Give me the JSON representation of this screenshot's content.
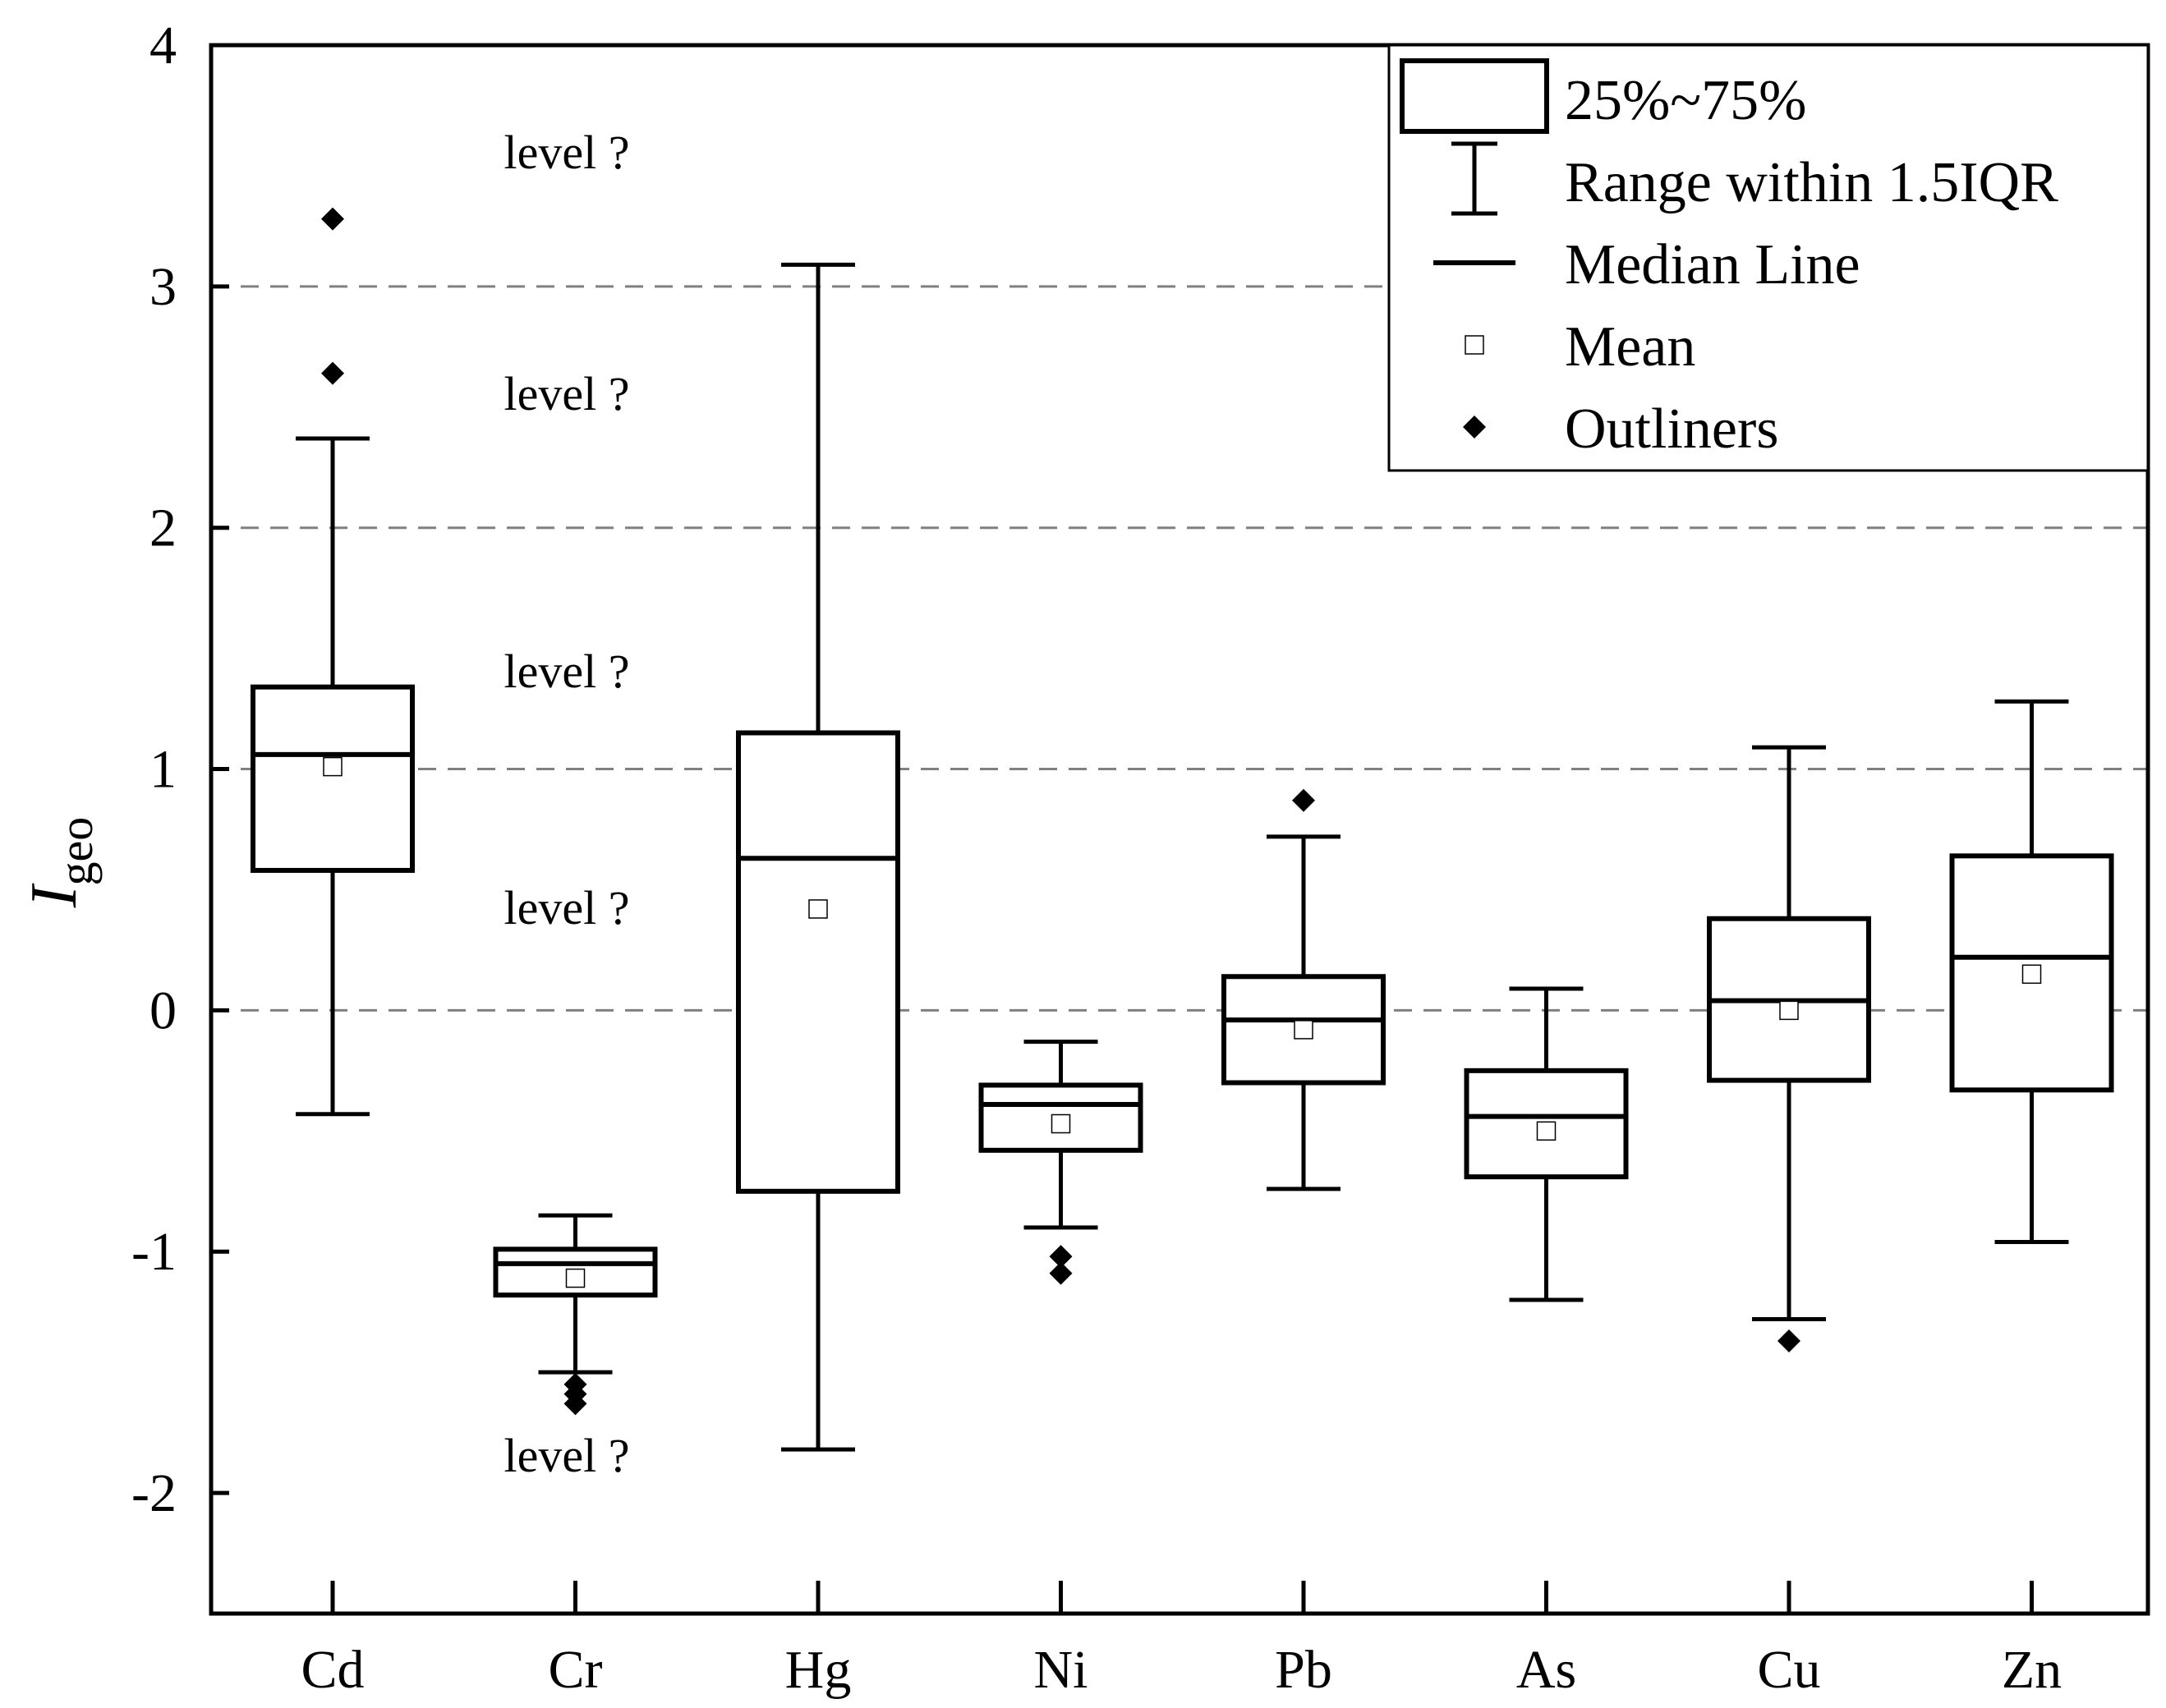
{
  "chart_data": {
    "type": "box",
    "ylabel": "I",
    "ylabel_subscript": "geo",
    "ylim": [
      -2.5,
      4
    ],
    "yticks": [
      -2,
      -1,
      0,
      1,
      2,
      3,
      4
    ],
    "ytick_labels": [
      "-2",
      "-1",
      "0",
      "1",
      "2",
      "3",
      "4"
    ],
    "reference_lines": [
      0,
      1,
      2,
      3
    ],
    "level_labels": [
      "level ?",
      "level ?",
      "level ?",
      "level ?",
      "level ?"
    ],
    "level_label_values": [
      3.55,
      2.55,
      1.4,
      0.42,
      -1.85
    ],
    "categories": [
      "Cd",
      "Cr",
      "Hg",
      "Ni",
      "Pb",
      "As",
      "Cu",
      "Zn"
    ],
    "boxes": [
      {
        "name": "Cd",
        "whisker_low": -0.43,
        "q1": 0.58,
        "median": 1.06,
        "q3": 1.34,
        "whisker_high": 2.37,
        "mean": 1.01,
        "outliers": [
          2.64,
          3.28
        ]
      },
      {
        "name": "Cr",
        "whisker_low": -1.5,
        "q1": -1.18,
        "median": -1.05,
        "q3": -0.99,
        "whisker_high": -0.85,
        "mean": -1.11,
        "outliers": [
          -1.55,
          -1.59,
          -1.63
        ]
      },
      {
        "name": "Hg",
        "whisker_low": -1.82,
        "q1": -0.75,
        "median": 0.63,
        "q3": 1.15,
        "whisker_high": 3.09,
        "mean": 0.42,
        "outliers": []
      },
      {
        "name": "Ni",
        "whisker_low": -0.9,
        "q1": -0.58,
        "median": -0.39,
        "q3": -0.31,
        "whisker_high": -0.13,
        "mean": -0.47,
        "outliers": [
          -1.02,
          -1.09
        ]
      },
      {
        "name": "Pb",
        "whisker_low": -0.74,
        "q1": -0.3,
        "median": -0.04,
        "q3": 0.14,
        "whisker_high": 0.72,
        "mean": -0.08,
        "outliers": [
          0.87
        ]
      },
      {
        "name": "As",
        "whisker_low": -1.2,
        "q1": -0.69,
        "median": -0.44,
        "q3": -0.25,
        "whisker_high": 0.09,
        "mean": -0.5,
        "outliers": []
      },
      {
        "name": "Cu",
        "whisker_low": -1.28,
        "q1": -0.29,
        "median": 0.04,
        "q3": 0.38,
        "whisker_high": 1.09,
        "mean": 0.0,
        "outliers": [
          -1.37
        ]
      },
      {
        "name": "Zn",
        "whisker_low": -0.96,
        "q1": -0.33,
        "median": 0.22,
        "q3": 0.64,
        "whisker_high": 1.28,
        "mean": 0.15,
        "outliers": []
      }
    ],
    "legend": {
      "position": "top-right",
      "entries": [
        {
          "symbol": "box",
          "label": "25%~75%"
        },
        {
          "symbol": "whisker",
          "label": "Range within 1.5IQR"
        },
        {
          "symbol": "median",
          "label": "Median Line"
        },
        {
          "symbol": "mean",
          "label": "Mean"
        },
        {
          "symbol": "outlier",
          "label": "Outliners"
        }
      ]
    }
  }
}
